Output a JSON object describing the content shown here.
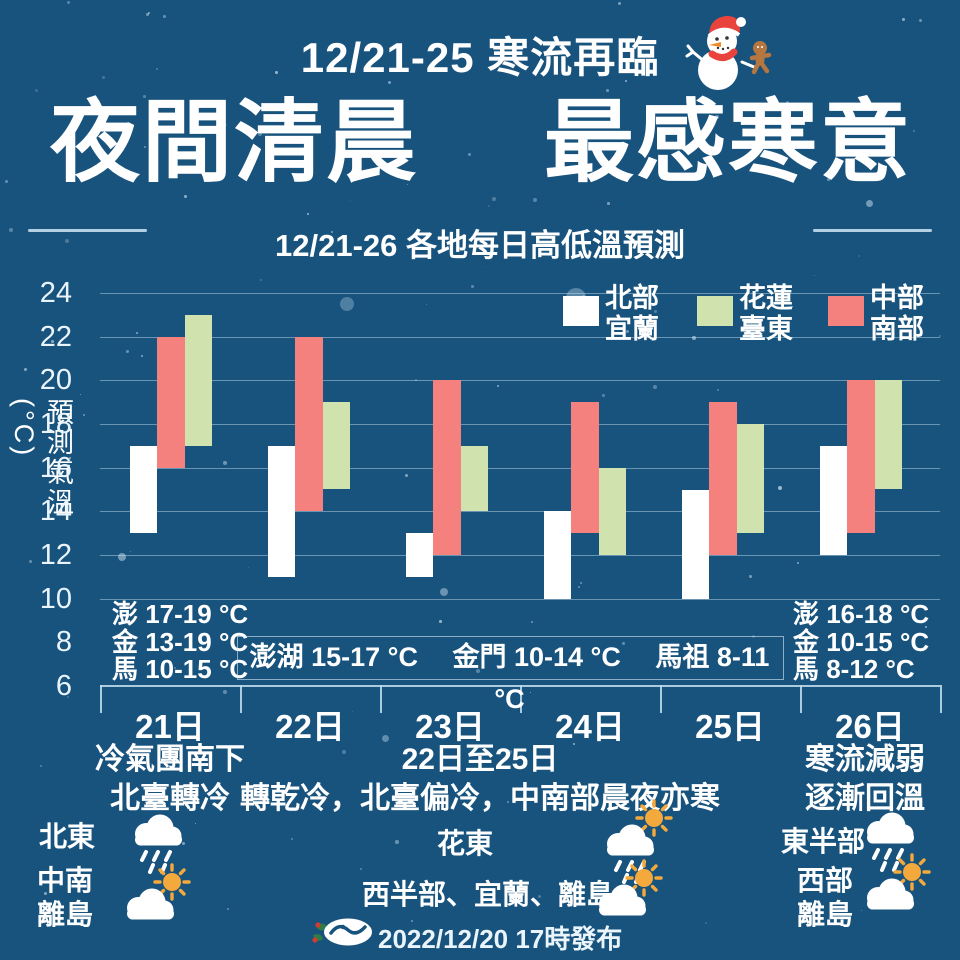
{
  "page": {
    "top_title": "12/21-25 寒流再臨",
    "headline_left": "夜間清晨",
    "headline_right": "最感寒意",
    "issued": "2022/12/20 17時發布"
  },
  "chart_data": {
    "type": "floating_bar_range",
    "title": "12/21-26 各地每日高低溫預測",
    "ylabel": "預測氣溫(°C)",
    "unit": "°C",
    "ylim": [
      6,
      24
    ],
    "yticks": [
      24,
      22,
      20,
      18,
      16,
      14,
      12,
      10,
      8,
      6
    ],
    "grid": true,
    "legend_position": "top-right",
    "categories": [
      "21日",
      "22日",
      "23日",
      "24日",
      "25日",
      "26日"
    ],
    "series": [
      {
        "name": "北部宜蘭",
        "legend": [
          "北部",
          "宜蘭"
        ],
        "color": "#FFFFFF",
        "ranges": [
          [
            13,
            17
          ],
          [
            11,
            17
          ],
          [
            11,
            13
          ],
          [
            10,
            14
          ],
          [
            10,
            15
          ],
          [
            12,
            17
          ]
        ]
      },
      {
        "name": "中部南部",
        "legend": [
          "中部",
          "南部"
        ],
        "color": "#F5817E",
        "ranges": [
          [
            16,
            22
          ],
          [
            14,
            22
          ],
          [
            12,
            20
          ],
          [
            13,
            19
          ],
          [
            12,
            19
          ],
          [
            13,
            20
          ]
        ]
      },
      {
        "name": "花蓮臺東",
        "legend": [
          "花蓮",
          "臺東"
        ],
        "color": "#D0E3AF",
        "ranges": [
          [
            17,
            23
          ],
          [
            15,
            19
          ],
          [
            14,
            17
          ],
          [
            12,
            16
          ],
          [
            13,
            18
          ],
          [
            15,
            20
          ]
        ]
      }
    ],
    "legend_order": [
      0,
      2,
      1
    ],
    "island_notes": {
      "left": [
        "澎 17-19 °C",
        "金 13-19 °C",
        "馬 10-15 °C"
      ],
      "center": "澎湖 15-17 °C　 金門 10-14 °C 　馬祖 8-11 °C",
      "right": [
        "澎 16-18 °C",
        "金 10-15 °C",
        "馬 8-12 °C"
      ]
    },
    "period_notes": {
      "left": [
        "冷氣團南下",
        "北臺轉冷"
      ],
      "center": [
        "22日至25日",
        "轉乾冷，北臺偏冷，中南部晨夜亦寒"
      ],
      "right": [
        "寒流減弱",
        "逐漸回溫"
      ]
    }
  },
  "weather": [
    {
      "label1": "北東",
      "label2": "",
      "icon": "rain-cloud-icon"
    },
    {
      "label1": "中南",
      "label2": "離島",
      "icon": "sun-cloud-icon"
    },
    {
      "label1": "花東",
      "label2": "",
      "icon": "sun-rain-cloud-icon"
    },
    {
      "label1": "西半部、宜蘭、離島",
      "label2": "",
      "icon": "sun-cloud-icon"
    },
    {
      "label1": "東半部",
      "label2": "",
      "icon": "rain-cloud-icon"
    },
    {
      "label1": "西部",
      "label2": "離島",
      "icon": "sun-cloud-icon"
    }
  ],
  "colors": {
    "background": "#18537E",
    "north": "#FFFFFF",
    "central_south": "#F5817E",
    "east": "#D0E3AF",
    "sun": "#F4A93C",
    "accent_line": "#BBD9E9"
  }
}
